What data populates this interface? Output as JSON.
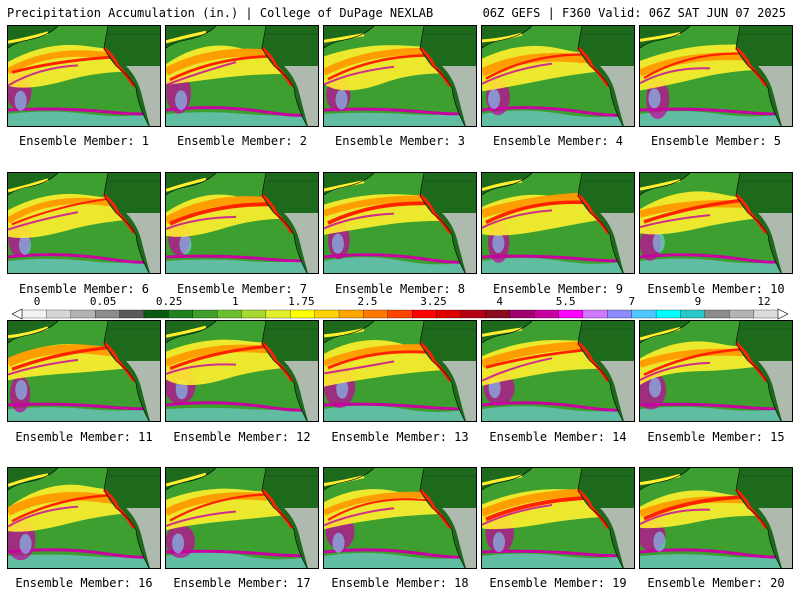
{
  "header": {
    "title": "Precipitation Accumulation (in.) | College of DuPage NEXLAB",
    "valid": "06Z GEFS | F360 Valid: 06Z SAT JUN 07 2025"
  },
  "members": [
    "Ensemble Member: 1",
    "Ensemble Member: 2",
    "Ensemble Member: 3",
    "Ensemble Member: 4",
    "Ensemble Member: 5",
    "Ensemble Member: 6",
    "Ensemble Member: 7",
    "Ensemble Member: 8",
    "Ensemble Member: 9",
    "Ensemble Member: 10",
    "Ensemble Member: 11",
    "Ensemble Member: 12",
    "Ensemble Member: 13",
    "Ensemble Member: 14",
    "Ensemble Member: 15",
    "Ensemble Member: 16",
    "Ensemble Member: 17",
    "Ensemble Member: 18",
    "Ensemble Member: 19",
    "Ensemble Member: 20"
  ],
  "colorbar": {
    "tick_labels": [
      "0",
      "0.05",
      "0.25",
      "1",
      "1.75",
      "2.5",
      "3.25",
      "4",
      "5.5",
      "7",
      "9",
      "12"
    ],
    "colors": [
      "#f2f2f2",
      "#d6d6d6",
      "#b4b4b4",
      "#8c8c8c",
      "#5a5a5a",
      "#0b5a12",
      "#23801e",
      "#3ea02a",
      "#6cbf2e",
      "#a7d930",
      "#e0ef2e",
      "#ffff00",
      "#ffd200",
      "#ffa500",
      "#ff7800",
      "#ff4500",
      "#ff0000",
      "#dc0000",
      "#b40014",
      "#8c0a1e",
      "#a0006e",
      "#c800a0",
      "#ff00ff",
      "#d278ff",
      "#8c8cff",
      "#4ec8ff",
      "#00ffff",
      "#28c8c8",
      "#8c8c8c",
      "#b4b4b4",
      "#dcdcdc"
    ]
  },
  "map_colors": {
    "ocean_base": "#3c9f2f",
    "land_dry": "#1d6a1d",
    "light_land": "#c8c8c8",
    "yellow": "#ffef2e",
    "orange": "#ff9a00",
    "red": "#ff2200",
    "magenta": "#c800a0",
    "cyan": "#7fd6ff"
  }
}
